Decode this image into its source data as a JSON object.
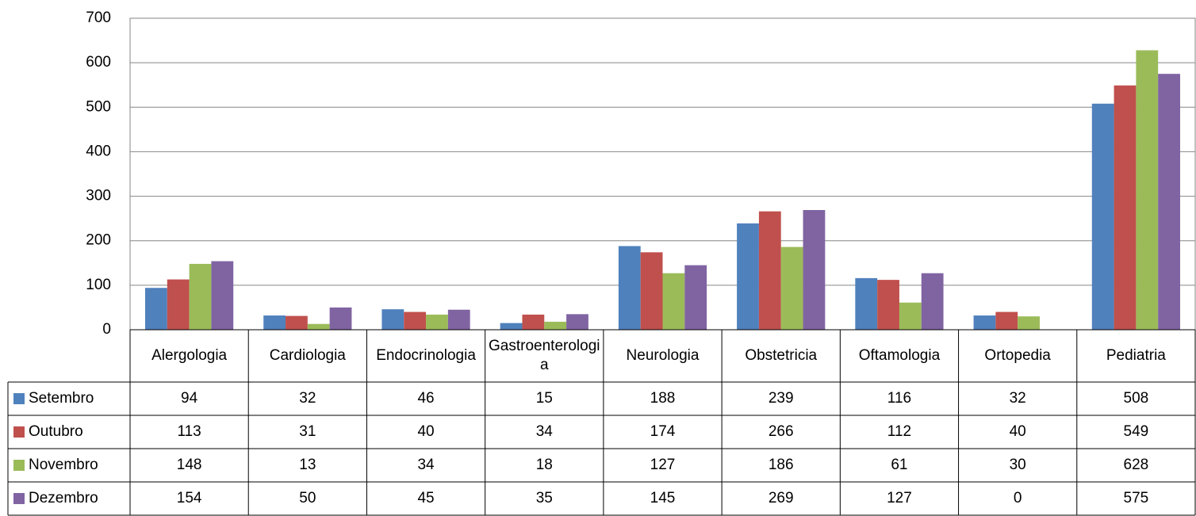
{
  "chart_data": {
    "type": "bar",
    "categories": [
      "Alergologia",
      "Cardiologia",
      "Endocrinologia",
      "Gastroenterologia",
      "Neurologia",
      "Obstetricia",
      "Oftamologia",
      "Ortopedia",
      "Pediatria"
    ],
    "series": [
      {
        "name": "Setembro",
        "color": "#4f81bd",
        "values": [
          94,
          32,
          46,
          15,
          188,
          239,
          116,
          32,
          508
        ]
      },
      {
        "name": "Outubro",
        "color": "#c0504d",
        "values": [
          113,
          31,
          40,
          34,
          174,
          266,
          112,
          40,
          549
        ]
      },
      {
        "name": "Novembro",
        "color": "#9bbb59",
        "values": [
          148,
          13,
          34,
          18,
          127,
          186,
          61,
          30,
          628
        ]
      },
      {
        "name": "Dezembro",
        "color": "#8064a2",
        "values": [
          154,
          50,
          45,
          35,
          145,
          269,
          127,
          0,
          575
        ]
      }
    ],
    "ylim": [
      0,
      700
    ],
    "yticks": [
      0,
      100,
      200,
      300,
      400,
      500,
      600,
      700
    ],
    "grid": true,
    "legend": "table"
  }
}
